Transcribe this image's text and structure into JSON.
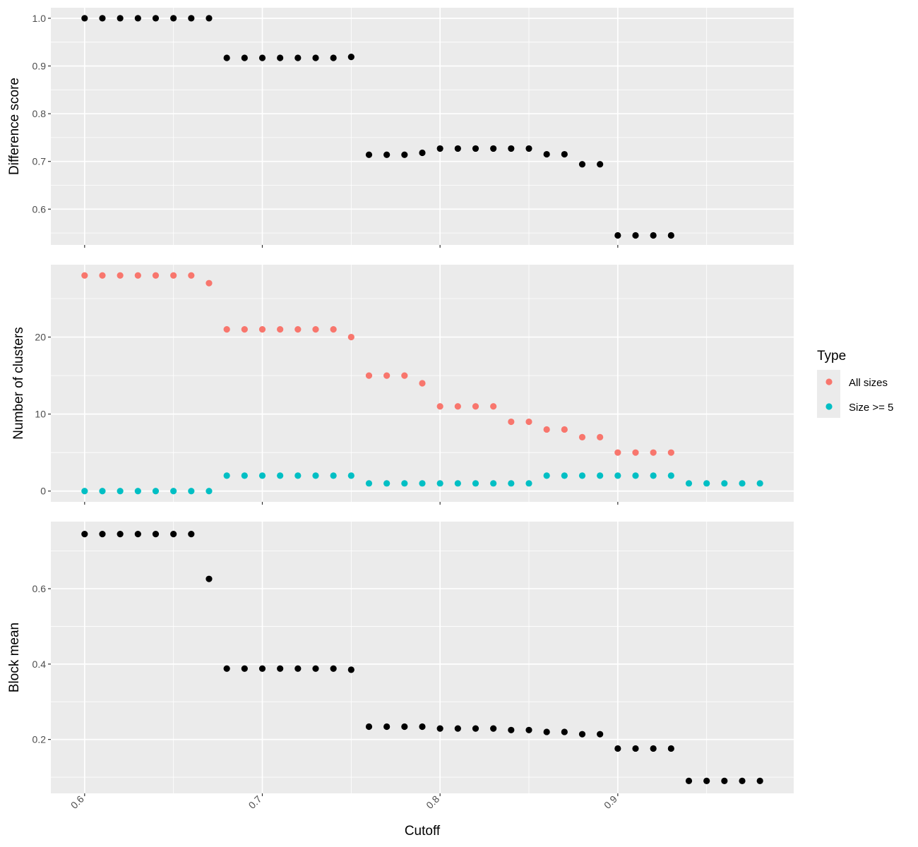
{
  "chart_data": [
    {
      "type": "scatter",
      "ylabel": "Difference score",
      "ylim": [
        0.525,
        1.022
      ],
      "yticks": [
        0.6,
        0.7,
        0.8,
        0.9,
        1.0
      ],
      "ytick_labels": [
        "0.6",
        "0.7",
        "0.8",
        "0.9",
        "1.0"
      ],
      "grid": true,
      "series": [
        {
          "color": "#000000",
          "x": [
            0.6,
            0.61,
            0.62,
            0.63,
            0.64,
            0.65,
            0.66,
            0.67,
            0.68,
            0.69,
            0.7,
            0.71,
            0.72,
            0.73,
            0.74,
            0.75,
            0.76,
            0.77,
            0.78,
            0.79,
            0.8,
            0.81,
            0.82,
            0.83,
            0.84,
            0.85,
            0.86,
            0.87,
            0.88,
            0.89,
            0.9,
            0.91,
            0.92,
            0.93
          ],
          "y": [
            1.0,
            1.0,
            1.0,
            1.0,
            1.0,
            1.0,
            1.0,
            1.0,
            0.917,
            0.917,
            0.917,
            0.917,
            0.917,
            0.917,
            0.917,
            0.919,
            0.714,
            0.714,
            0.714,
            0.718,
            0.727,
            0.727,
            0.727,
            0.727,
            0.727,
            0.727,
            0.715,
            0.715,
            0.694,
            0.694,
            0.545,
            0.545,
            0.545,
            0.545
          ]
        }
      ]
    },
    {
      "type": "scatter",
      "ylabel": "Number of clusters",
      "ylim": [
        -1.4,
        29.4
      ],
      "yticks": [
        0,
        10,
        20
      ],
      "ytick_labels": [
        "0",
        "10",
        "20"
      ],
      "grid": true,
      "series": [
        {
          "name": "All sizes",
          "color": "#F8766D",
          "x": [
            0.6,
            0.61,
            0.62,
            0.63,
            0.64,
            0.65,
            0.66,
            0.67,
            0.68,
            0.69,
            0.7,
            0.71,
            0.72,
            0.73,
            0.74,
            0.75,
            0.76,
            0.77,
            0.78,
            0.79,
            0.8,
            0.81,
            0.82,
            0.83,
            0.84,
            0.85,
            0.86,
            0.87,
            0.88,
            0.89,
            0.9,
            0.91,
            0.92,
            0.93
          ],
          "y": [
            28,
            28,
            28,
            28,
            28,
            28,
            28,
            27,
            21,
            21,
            21,
            21,
            21,
            21,
            21,
            20,
            15,
            15,
            15,
            14,
            11,
            11,
            11,
            11,
            9,
            9,
            8,
            8,
            7,
            7,
            5,
            5,
            5,
            5
          ]
        },
        {
          "name": "Size >= 5",
          "color": "#00BFC4",
          "x": [
            0.6,
            0.61,
            0.62,
            0.63,
            0.64,
            0.65,
            0.66,
            0.67,
            0.68,
            0.69,
            0.7,
            0.71,
            0.72,
            0.73,
            0.74,
            0.75,
            0.76,
            0.77,
            0.78,
            0.79,
            0.8,
            0.81,
            0.82,
            0.83,
            0.84,
            0.85,
            0.86,
            0.87,
            0.88,
            0.89,
            0.9,
            0.91,
            0.92,
            0.93,
            0.94,
            0.95,
            0.96,
            0.97,
            0.98
          ],
          "y": [
            0,
            0,
            0,
            0,
            0,
            0,
            0,
            0,
            2,
            2,
            2,
            2,
            2,
            2,
            2,
            2,
            1,
            1,
            1,
            1,
            1,
            1,
            1,
            1,
            1,
            1,
            2,
            2,
            2,
            2,
            2,
            2,
            2,
            2,
            1,
            1,
            1,
            1,
            1
          ]
        }
      ]
    },
    {
      "type": "scatter",
      "ylabel": "Block mean",
      "ylim": [
        0.057,
        0.778
      ],
      "yticks": [
        0.2,
        0.4,
        0.6
      ],
      "ytick_labels": [
        "0.2",
        "0.4",
        "0.6"
      ],
      "grid": true,
      "series": [
        {
          "color": "#000000",
          "x": [
            0.6,
            0.61,
            0.62,
            0.63,
            0.64,
            0.65,
            0.66,
            0.67,
            0.68,
            0.69,
            0.7,
            0.71,
            0.72,
            0.73,
            0.74,
            0.75,
            0.76,
            0.77,
            0.78,
            0.79,
            0.8,
            0.81,
            0.82,
            0.83,
            0.84,
            0.85,
            0.86,
            0.87,
            0.88,
            0.89,
            0.9,
            0.91,
            0.92,
            0.93,
            0.94,
            0.95,
            0.96,
            0.97,
            0.98
          ],
          "y": [
            0.745,
            0.745,
            0.745,
            0.745,
            0.745,
            0.745,
            0.745,
            0.626,
            0.388,
            0.388,
            0.388,
            0.388,
            0.388,
            0.388,
            0.388,
            0.385,
            0.234,
            0.234,
            0.234,
            0.234,
            0.229,
            0.229,
            0.229,
            0.229,
            0.225,
            0.225,
            0.22,
            0.22,
            0.214,
            0.214,
            0.176,
            0.176,
            0.176,
            0.176,
            0.09,
            0.09,
            0.09,
            0.09,
            0.09
          ]
        }
      ]
    }
  ],
  "x_axis": {
    "label": "Cutoff",
    "xlim": [
      0.581,
      0.999
    ],
    "ticks": [
      0.6,
      0.7,
      0.8,
      0.9
    ],
    "tick_labels": [
      "0.6",
      "0.7",
      "0.8",
      "0.9"
    ]
  },
  "legend": {
    "title": "Type",
    "placement": "right",
    "entries": [
      {
        "label": "All sizes",
        "color": "#F8766D"
      },
      {
        "label": "Size >= 5",
        "color": "#00BFC4"
      }
    ]
  },
  "colors": {
    "panel_background": "#EBEBEB",
    "grid_line": "#FFFFFF"
  }
}
